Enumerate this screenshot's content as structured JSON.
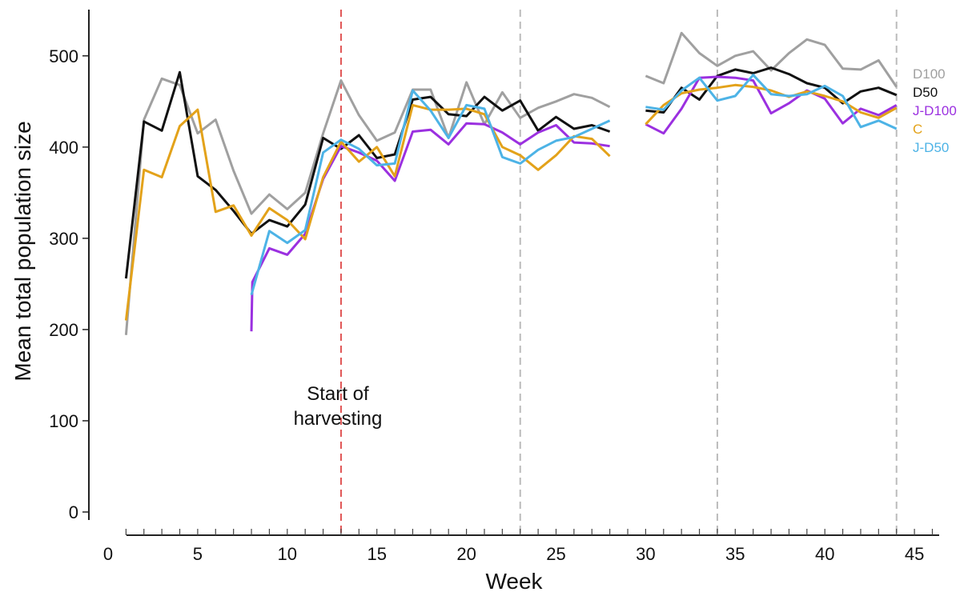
{
  "chart_data": {
    "type": "line",
    "title": "",
    "xlabel": "Week",
    "ylabel": "Mean total population size",
    "xlim": [
      0,
      46
    ],
    "ylim": [
      0,
      550
    ],
    "x_ticks": [
      0,
      5,
      10,
      15,
      20,
      25,
      30,
      35,
      40,
      45
    ],
    "y_ticks": [
      0,
      100,
      200,
      300,
      400,
      500
    ],
    "grid": false,
    "legend_placement": "right (labels at line ends)",
    "annotations": [
      {
        "text": "Start of\nharvesting",
        "x": 13,
        "color": "#e05555"
      }
    ],
    "vlines": [
      {
        "x": 13,
        "color": "#e05555"
      },
      {
        "x": 23,
        "color": "#bbbbbb"
      },
      {
        "x": 34,
        "color": "#bbbbbb"
      },
      {
        "x": 44,
        "color": "#bbbbbb"
      }
    ],
    "series": [
      {
        "name": "D100",
        "color": "#a0a0a0",
        "segments": [
          {
            "x": [
              1,
              2,
              3,
              4,
              5,
              6,
              7,
              8,
              9,
              10,
              11,
              12,
              13,
              14,
              15,
              16,
              17,
              18,
              19,
              20,
              21,
              22,
              23,
              24,
              25,
              26,
              27,
              28
            ],
            "y": [
              194,
              430,
              475,
              468,
              415,
              430,
              374,
              327,
              348,
              332,
              350,
              415,
              473,
              435,
              407,
              416,
              463,
              463,
              410,
              471,
              425,
              460,
              432,
              443,
              450,
              458,
              454,
              444
            ]
          },
          {
            "x": [
              30,
              31,
              32,
              33,
              34,
              35,
              36,
              37,
              38,
              39,
              40,
              41,
              42,
              43,
              44
            ],
            "y": [
              478,
              470,
              525,
              503,
              489,
              500,
              505,
              484,
              503,
              518,
              512,
              486,
              485,
              495,
              466
            ]
          }
        ]
      },
      {
        "name": "D50",
        "color": "#111111",
        "segments": [
          {
            "x": [
              1,
              2,
              3,
              4,
              5,
              6,
              7,
              8,
              9,
              10,
              11,
              12,
              13,
              14,
              15,
              16,
              17,
              18,
              19,
              20,
              21,
              22,
              23,
              24,
              25,
              26,
              27,
              28
            ],
            "y": [
              256,
              428,
              418,
              482,
              368,
              353,
              330,
              305,
              320,
              313,
              337,
              410,
              398,
              413,
              388,
              392,
              452,
              455,
              436,
              434,
              455,
              440,
              451,
              418,
              433,
              420,
              424,
              417
            ]
          },
          {
            "x": [
              30,
              31,
              32,
              33,
              34,
              35,
              36,
              37,
              38,
              39,
              40,
              41,
              42,
              43,
              44
            ],
            "y": [
              440,
              438,
              465,
              452,
              478,
              485,
              481,
              487,
              480,
              470,
              465,
              448,
              461,
              465,
              457
            ]
          }
        ]
      },
      {
        "name": "J-D100",
        "color": "#9b30e0",
        "segments": [
          {
            "x": [
              8,
              8.05,
              9,
              10,
              11,
              12,
              13,
              14,
              15,
              16,
              17,
              18,
              19,
              20,
              21,
              22,
              23,
              24,
              25,
              26,
              27,
              28
            ],
            "y": [
              198,
              252,
              289,
              282,
              305,
              365,
              401,
              394,
              385,
              363,
              417,
              419,
              403,
              426,
              425,
              416,
              403,
              416,
              424,
              405,
              404,
              401
            ]
          },
          {
            "x": [
              30,
              31,
              32,
              33,
              34,
              35,
              36,
              37,
              38,
              39,
              40,
              41,
              42,
              43,
              44
            ],
            "y": [
              425,
              415,
              442,
              476,
              477,
              476,
              473,
              437,
              448,
              462,
              453,
              426,
              442,
              435,
              446
            ]
          }
        ]
      },
      {
        "name": "C",
        "color": "#e3a21a",
        "segments": [
          {
            "x": [
              1,
              2,
              3,
              4,
              5,
              6,
              7,
              8,
              9,
              10,
              11,
              12,
              13,
              14,
              15,
              16,
              17,
              18,
              19,
              20,
              21,
              22,
              23,
              24,
              25,
              26,
              27,
              28
            ],
            "y": [
              210,
              375,
              367,
              423,
              441,
              329,
              336,
              303,
              333,
              320,
              299,
              367,
              406,
              384,
              400,
              368,
              446,
              441,
              441,
              442,
              436,
              400,
              391,
              375,
              391,
              412,
              409,
              390
            ]
          },
          {
            "x": [
              30,
              31,
              32,
              33,
              34,
              35,
              36,
              37,
              38,
              39,
              40,
              41,
              42,
              43,
              44
            ],
            "y": [
              425,
              446,
              459,
              463,
              465,
              468,
              466,
              462,
              455,
              461,
              456,
              450,
              438,
              432,
              443
            ]
          }
        ]
      },
      {
        "name": "J-D50",
        "color": "#4db3e6",
        "segments": [
          {
            "x": [
              8,
              9,
              10,
              11,
              12,
              13,
              14,
              15,
              16,
              17,
              18,
              19,
              20,
              21,
              22,
              23,
              24,
              25,
              26,
              27,
              28
            ],
            "y": [
              238,
              308,
              295,
              309,
              394,
              408,
              398,
              380,
              382,
              462,
              440,
              410,
              446,
              442,
              389,
              382,
              397,
              407,
              411,
              420,
              429
            ]
          },
          {
            "x": [
              30,
              31,
              32,
              33,
              34,
              35,
              36,
              37,
              38,
              39,
              40,
              41,
              42,
              43,
              44
            ],
            "y": [
              444,
              441,
              462,
              476,
              451,
              456,
              479,
              458,
              456,
              458,
              467,
              456,
              422,
              429,
              420
            ]
          }
        ]
      }
    ]
  }
}
